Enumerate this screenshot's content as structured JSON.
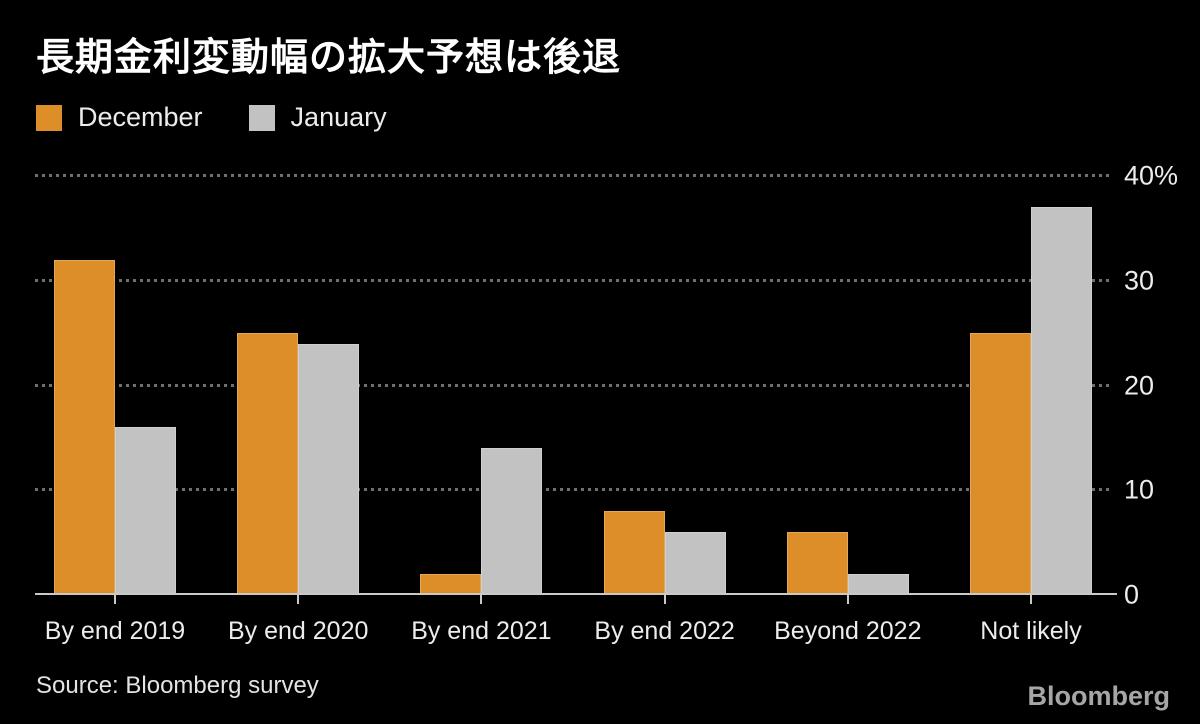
{
  "title": "長期金利変動幅の拡大予想は後退",
  "legend": [
    {
      "label": "December",
      "color": "#dd8e29"
    },
    {
      "label": "January",
      "color": "#c2c2c2"
    }
  ],
  "source": "Source: Bloomberg survey",
  "brand": "Bloomberg",
  "colors": {
    "background": "#000000",
    "december": "#dd8e29",
    "january": "#c2c2c2",
    "grid": "#6f6f6f",
    "axis": "#c9c9c9",
    "text": "#ececec"
  },
  "chart_data": {
    "type": "bar",
    "title": "長期金利変動幅の拡大予想は後退",
    "categories": [
      "By end 2019",
      "By end 2020",
      "By end 2021",
      "By end 2022",
      "Beyond 2022",
      "Not likely"
    ],
    "series": [
      {
        "name": "December",
        "color": "#dd8e29",
        "values": [
          32,
          25,
          2,
          8,
          6,
          25
        ]
      },
      {
        "name": "January",
        "color": "#c2c2c2",
        "values": [
          16,
          24,
          14,
          6,
          2,
          37
        ]
      }
    ],
    "xlabel": "",
    "ylabel": "",
    "ylim": [
      0,
      40
    ],
    "yticks": [
      0,
      10,
      20,
      30,
      40
    ],
    "ytick_labels": [
      "0",
      "10",
      "20",
      "30",
      "40%"
    ],
    "grid": "horizontal-dotted",
    "legend_position": "top-left",
    "unit": "%"
  }
}
